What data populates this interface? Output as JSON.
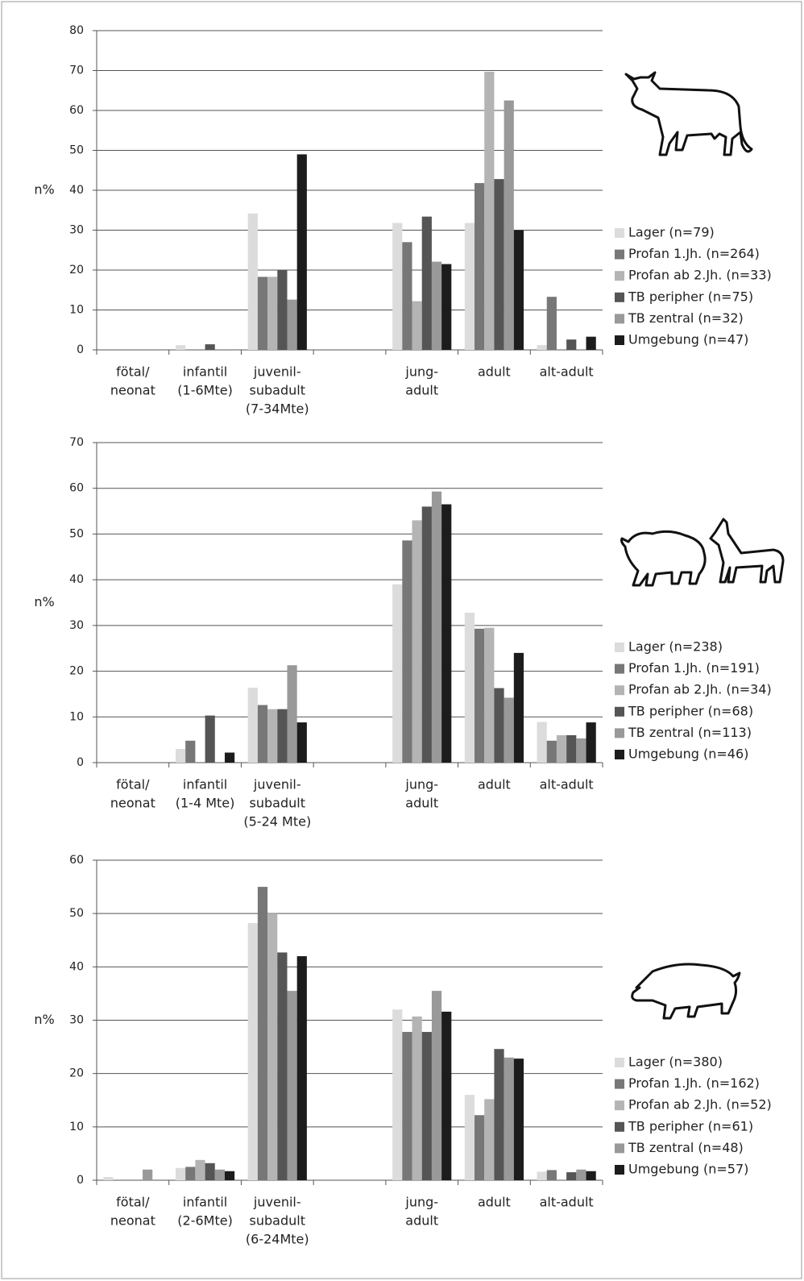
{
  "chart_data": [
    {
      "type": "bar",
      "y_label": "n%",
      "categories": [
        [
          "fötal/",
          "neonat"
        ],
        [
          "infantil",
          "(1-6Mte)"
        ],
        [
          "juvenil-",
          "subadult",
          "(7-34Mte)"
        ],
        null,
        [
          "jung-",
          "adult"
        ],
        [
          "adult"
        ],
        [
          "alt-adult"
        ]
      ],
      "series": [
        {
          "name": "Lager (n=79)",
          "color": "#dcdcdc",
          "values": [
            0,
            1.2,
            34.2,
            null,
            31.8,
            31.8,
            1.2
          ]
        },
        {
          "name": "Profan 1.Jh. (n=264)",
          "color": "#777777",
          "values": [
            0,
            0,
            18.3,
            null,
            27,
            41.8,
            13.3
          ]
        },
        {
          "name": "Profan ab 2.Jh. (n=33)",
          "color": "#b4b4b4",
          "values": [
            0,
            0,
            18.3,
            null,
            12.2,
            69.7,
            0
          ]
        },
        {
          "name": "TB peripher (n=75)",
          "color": "#555555",
          "values": [
            0,
            1.4,
            20,
            null,
            33.4,
            42.8,
            2.6
          ]
        },
        {
          "name": "TB zentral (n=32)",
          "color": "#999999",
          "values": [
            0,
            0,
            12.6,
            null,
            22.1,
            62.5,
            0
          ]
        },
        {
          "name": "Umgebung (n=47)",
          "color": "#1c1c1c",
          "values": [
            0,
            0,
            49,
            null,
            21.5,
            30,
            3.3
          ]
        }
      ],
      "ylim": [
        0,
        80
      ],
      "yticks": [
        0,
        10,
        20,
        30,
        40,
        50,
        60,
        70,
        80
      ],
      "grid": true,
      "legend": "right"
    },
    {
      "type": "bar",
      "y_label": "n%",
      "categories": [
        [
          "fötal/",
          "neonat"
        ],
        [
          "infantil",
          "(1-4 Mte)"
        ],
        [
          "juvenil-",
          "subadult",
          "(5-24 Mte)"
        ],
        null,
        [
          "jung-",
          "adult"
        ],
        [
          "adult"
        ],
        [
          "alt-adult"
        ]
      ],
      "series": [
        {
          "name": "Lager (n=238)",
          "color": "#dcdcdc",
          "values": [
            0,
            3,
            16.4,
            null,
            39,
            32.8,
            8.9
          ]
        },
        {
          "name": "Profan 1.Jh. (n=191)",
          "color": "#777777",
          "values": [
            0,
            4.8,
            12.6,
            null,
            48.6,
            29.3,
            4.8
          ]
        },
        {
          "name": "Profan ab 2.Jh. (n=34)",
          "color": "#b4b4b4",
          "values": [
            0,
            0,
            11.7,
            null,
            53,
            29.5,
            6
          ]
        },
        {
          "name": "TB peripher (n=68)",
          "color": "#555555",
          "values": [
            0,
            10.3,
            11.7,
            null,
            56,
            16.3,
            6
          ]
        },
        {
          "name": "TB zentral (n=113)",
          "color": "#999999",
          "values": [
            0,
            0,
            21.3,
            null,
            59.3,
            14.2,
            5.3
          ]
        },
        {
          "name": "Umgebung (n=46)",
          "color": "#1c1c1c",
          "values": [
            0,
            2.2,
            8.8,
            null,
            56.5,
            24,
            8.8
          ]
        }
      ],
      "ylim": [
        0,
        70
      ],
      "yticks": [
        0,
        10,
        20,
        30,
        40,
        50,
        60,
        70
      ],
      "grid": true,
      "legend": "right"
    },
    {
      "type": "bar",
      "y_label": "n%",
      "categories": [
        [
          "fötal/",
          "neonat"
        ],
        [
          "infantil",
          "(2-6Mte)"
        ],
        [
          "juvenil-",
          "subadult",
          "(6-24Mte)"
        ],
        null,
        [
          "jung-",
          "adult"
        ],
        [
          "adult"
        ],
        [
          "alt-adult"
        ]
      ],
      "series": [
        {
          "name": "Lager (n=380)",
          "color": "#dcdcdc",
          "values": [
            0.6,
            2.3,
            48.2,
            null,
            32,
            16,
            1.6
          ]
        },
        {
          "name": "Profan 1.Jh. (n=162)",
          "color": "#777777",
          "values": [
            0,
            2.5,
            55,
            null,
            27.8,
            12.2,
            1.9
          ]
        },
        {
          "name": "Profan ab 2.Jh. (n=52)",
          "color": "#b4b4b4",
          "values": [
            0,
            3.8,
            50,
            null,
            30.7,
            15.2,
            0
          ]
        },
        {
          "name": "TB peripher (n=61)",
          "color": "#555555",
          "values": [
            0,
            3.2,
            42.7,
            null,
            27.8,
            24.6,
            1.5
          ]
        },
        {
          "name": "TB zentral (n=48)",
          "color": "#999999",
          "values": [
            2,
            2,
            35.5,
            null,
            35.5,
            23,
            2
          ]
        },
        {
          "name": "Umgebung (n=57)",
          "color": "#1c1c1c",
          "values": [
            0,
            1.7,
            42,
            null,
            31.6,
            22.8,
            1.7
          ]
        }
      ],
      "ylim": [
        0,
        60
      ],
      "yticks": [
        0,
        10,
        20,
        30,
        40,
        50,
        60
      ],
      "grid": true,
      "legend": "right"
    }
  ]
}
